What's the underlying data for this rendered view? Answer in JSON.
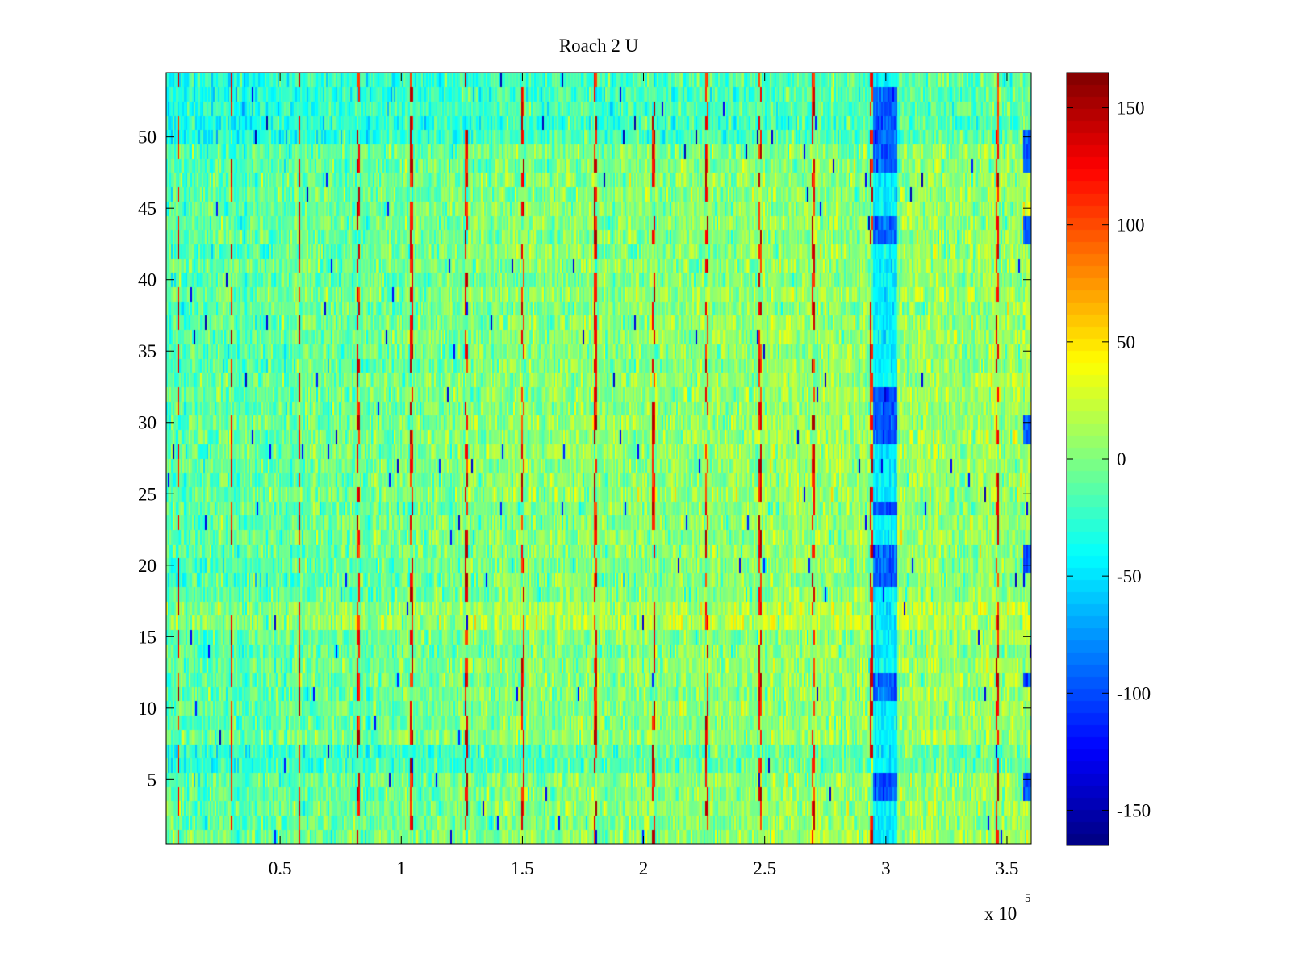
{
  "chart_data": {
    "type": "heatmap",
    "title": "Roach 2 U",
    "xlabel": "",
    "ylabel": "",
    "x_exponent_label": "x 10",
    "x_exponent_power": "5",
    "xlim": [
      0.03,
      3.6
    ],
    "ylim": [
      0.5,
      54.5
    ],
    "x_ticks": [
      0.5,
      1,
      1.5,
      2,
      2.5,
      3,
      3.5
    ],
    "x_tick_labels": [
      "0.5",
      "1",
      "1.5",
      "2",
      "2.5",
      "3",
      "3.5"
    ],
    "y_ticks": [
      5,
      10,
      15,
      20,
      25,
      30,
      35,
      40,
      45,
      50
    ],
    "y_tick_labels": [
      "5",
      "10",
      "15",
      "20",
      "25",
      "30",
      "35",
      "40",
      "45",
      "50"
    ],
    "rows": 54,
    "colormap": "jet",
    "clim": [
      -165,
      165
    ],
    "colorbar_ticks": [
      -150,
      -100,
      -50,
      0,
      50,
      100,
      150
    ],
    "colorbar_tick_labels": [
      "-150",
      "-100",
      "-50",
      "0",
      "50",
      "100",
      "150"
    ],
    "grid": false,
    "features": {
      "low_band_x": [
        2.95,
        3.05
      ],
      "low_band_rows": [
        4,
        5,
        11,
        12,
        19,
        20,
        21,
        24,
        29,
        30,
        31,
        32,
        43,
        44,
        48,
        49,
        50,
        51,
        52,
        53
      ],
      "right_edge_low_rows": [
        4,
        5,
        12,
        20,
        21,
        29,
        30,
        43,
        44,
        48,
        49,
        50
      ],
      "spike_x": [
        0.08,
        0.3,
        0.58,
        0.82,
        1.04,
        1.27,
        1.5,
        1.8,
        2.04,
        2.26,
        2.48,
        2.7,
        2.94,
        3.46
      ]
    }
  }
}
